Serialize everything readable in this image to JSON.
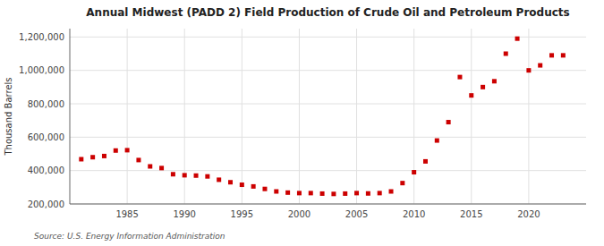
{
  "chart_data": {
    "type": "scatter",
    "title": "Annual Midwest (PADD 2) Field Production of Crude Oil and Petroleum Products",
    "y_label": "Thousand Barrels",
    "annotations": [
      "Source: U.S. Energy Information Administration"
    ],
    "x": [
      1981,
      1982,
      1983,
      1984,
      1985,
      1986,
      1987,
      1988,
      1989,
      1990,
      1991,
      1992,
      1993,
      1994,
      1995,
      1996,
      1997,
      1998,
      1999,
      2000,
      2001,
      2002,
      2003,
      2004,
      2005,
      2006,
      2007,
      2008,
      2009,
      2010,
      2011,
      2012,
      2013,
      2014,
      2015,
      2016,
      2017,
      2018,
      2019,
      2020,
      2021,
      2022,
      2023
    ],
    "values": [
      468000,
      480000,
      487000,
      520000,
      522000,
      463000,
      425000,
      415000,
      378000,
      372000,
      370000,
      365000,
      345000,
      330000,
      315000,
      305000,
      290000,
      275000,
      268000,
      265000,
      265000,
      262000,
      260000,
      262000,
      265000,
      263000,
      265000,
      275000,
      325000,
      390000,
      455000,
      580000,
      690000,
      960000,
      850000,
      900000,
      935000,
      1100000,
      1190000,
      1000000,
      1030000,
      1090000,
      1090000
    ],
    "color": "#cc0000",
    "marker": "square",
    "grid": true,
    "xlim": [
      1980,
      2025
    ],
    "xticks": [
      1985,
      1990,
      1995,
      2000,
      2005,
      2010,
      2015,
      2020
    ],
    "ylim": [
      200000,
      1250000
    ],
    "yticks": [
      {
        "value": 200000,
        "label": "200,000"
      },
      {
        "value": 400000,
        "label": "400,000"
      },
      {
        "value": 600000,
        "label": "600,000"
      },
      {
        "value": 800000,
        "label": "800,000"
      },
      {
        "value": 1000000,
        "label": "1,000,000"
      },
      {
        "value": 1200000,
        "label": "1,200,000"
      }
    ]
  }
}
